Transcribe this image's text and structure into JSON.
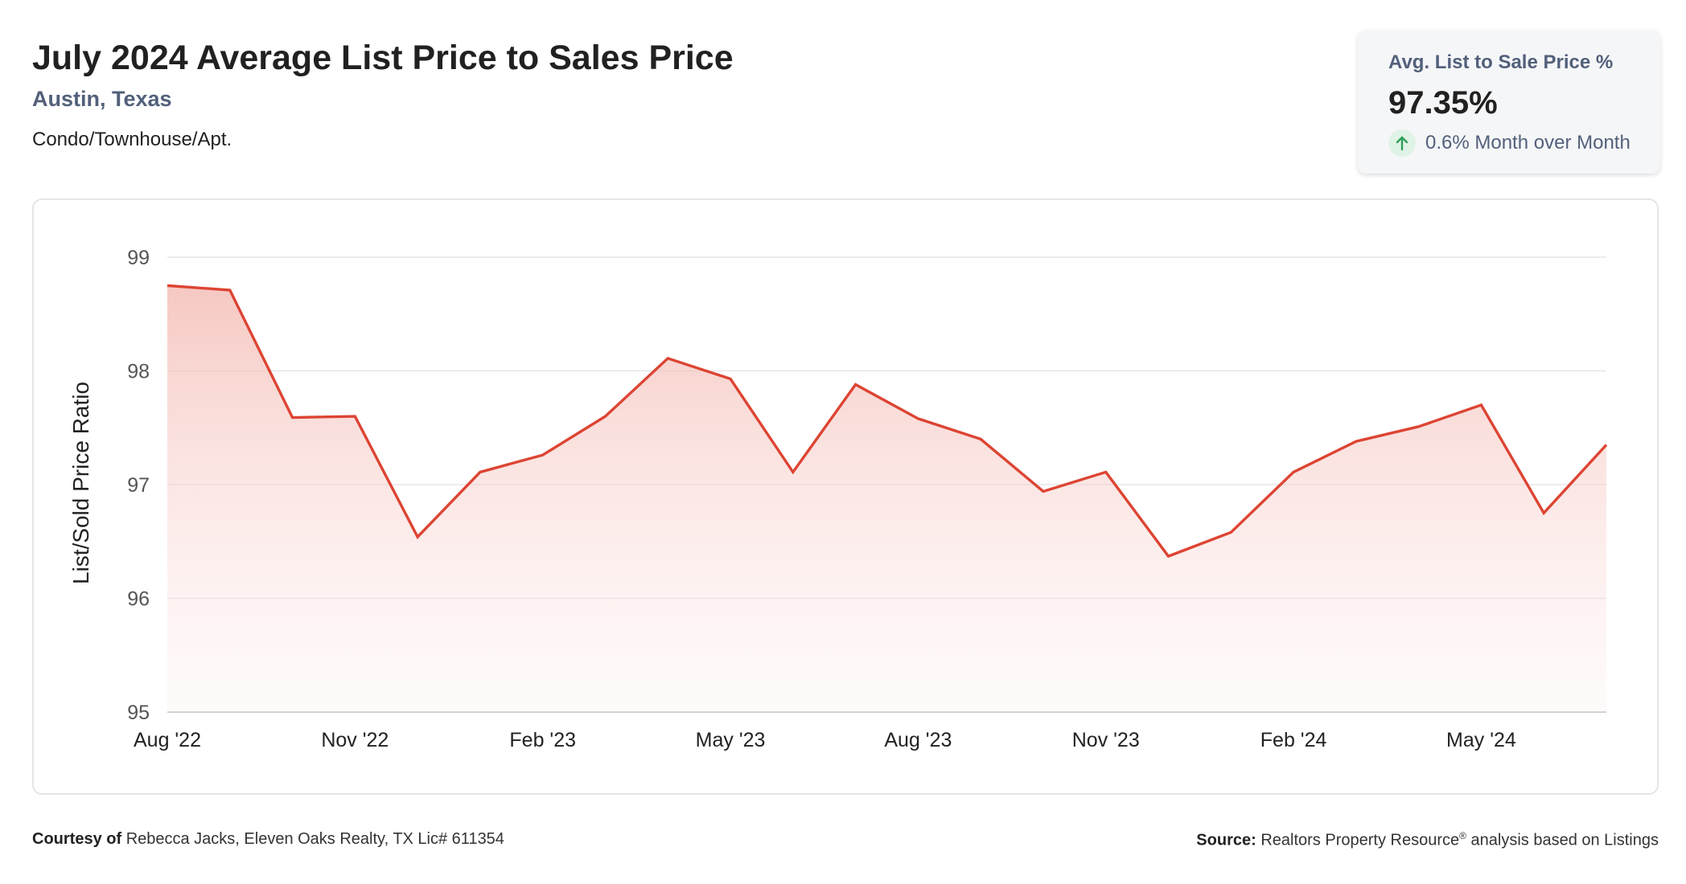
{
  "header": {
    "title": "July 2024 Average List Price to Sales Price",
    "location": "Austin, Texas",
    "property_type": "Condo/Townhouse/Apt."
  },
  "stat_card": {
    "label": "Avg. List to Sale Price %",
    "value": "97.35%",
    "change_text": "0.6% Month over Month",
    "trend": "up",
    "trend_icon": "arrow-up-icon"
  },
  "chart_data": {
    "type": "area",
    "ylabel": "List/Sold Price Ratio",
    "xlabel": "",
    "ylim": [
      95,
      99
    ],
    "y_ticks": [
      95,
      96,
      97,
      98,
      99
    ],
    "grid": true,
    "legend": "none",
    "x_tick_labels": [
      "Aug '22",
      "Nov '22",
      "Feb '23",
      "May '23",
      "Aug '23",
      "Nov '23",
      "Feb '24",
      "May '24"
    ],
    "x_tick_indices": [
      0,
      3,
      6,
      9,
      12,
      15,
      18,
      21
    ],
    "series": [
      {
        "x": [
          "Aug '22",
          "Sep '22",
          "Oct '22",
          "Nov '22",
          "Dec '22",
          "Jan '23",
          "Feb '23",
          "Mar '23",
          "Apr '23",
          "May '23",
          "Jun '23",
          "Jul '23",
          "Aug '23",
          "Sep '23",
          "Oct '23",
          "Nov '23",
          "Dec '23",
          "Jan '24",
          "Feb '24",
          "Mar '24",
          "Apr '24",
          "May '24",
          "Jun '24",
          "Jul '24"
        ],
        "values": [
          98.75,
          98.71,
          97.59,
          97.6,
          96.54,
          97.11,
          97.26,
          97.6,
          98.11,
          97.93,
          97.11,
          97.88,
          97.58,
          97.4,
          96.94,
          97.11,
          96.37,
          96.58,
          97.11,
          97.38,
          97.51,
          97.7,
          96.75,
          97.35
        ]
      }
    ],
    "colors": {
      "line": "#dd4433",
      "fill_top": "#f3b6ae",
      "grid": "#e2e2e2",
      "axis": "#bdbdbd"
    }
  },
  "footer": {
    "courtesy_label": "Courtesy of",
    "courtesy_text": "Rebecca Jacks, Eleven Oaks Realty, TX Lic# 611354",
    "source_label": "Source:",
    "source_text_1": "Realtors Property Resource",
    "source_reg": "®",
    "source_text_2": " analysis based on Listings"
  }
}
